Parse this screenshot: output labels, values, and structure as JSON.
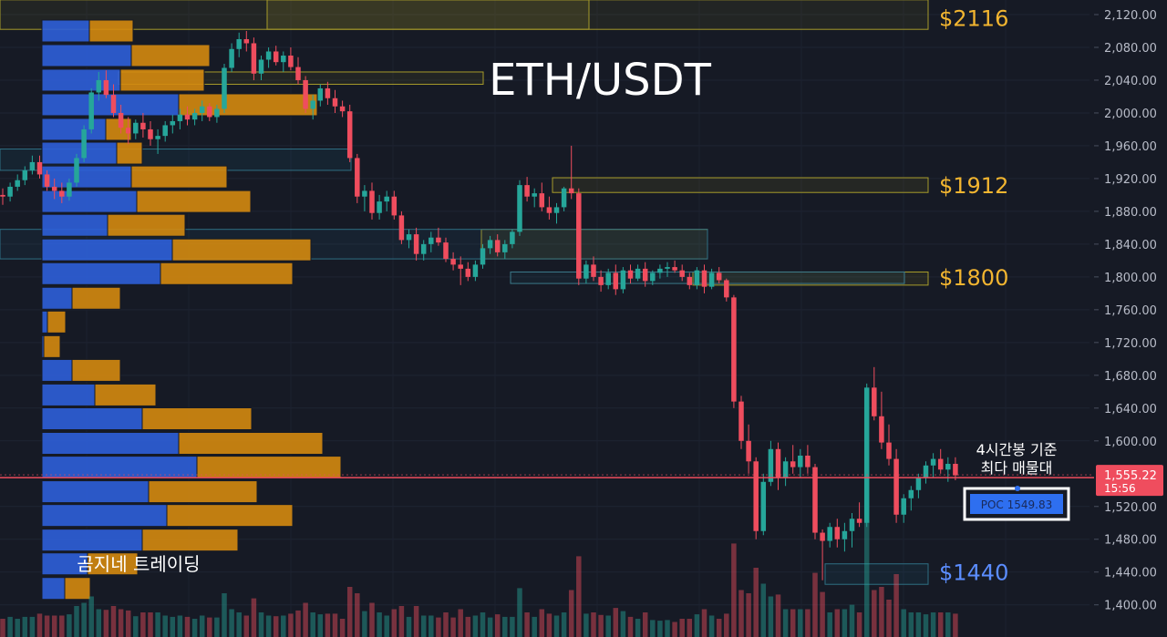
{
  "chart_data": {
    "type": "candlestick",
    "title": "ETH/USDT",
    "watermark": "곰지네 트레이딩",
    "y_axis": {
      "ylim": [
        1380,
        2140
      ],
      "ticks": [
        "2,120.00",
        "2,080.00",
        "2,040.00",
        "2,000.00",
        "1,960.00",
        "1,920.00",
        "1,880.00",
        "1,840.00",
        "1,800.00",
        "1,760.00",
        "1,720.00",
        "1,680.00",
        "1,640.00",
        "1,600.00",
        "1,520.00",
        "1,480.00",
        "1,440.00",
        "1,400.00"
      ],
      "tick_values": [
        2120,
        2080,
        2040,
        2000,
        1960,
        1920,
        1880,
        1840,
        1800,
        1760,
        1720,
        1680,
        1640,
        1600,
        1520,
        1480,
        1440,
        1400
      ]
    },
    "current_price": {
      "value": 1555.22,
      "label": "1,555.22",
      "countdown": "15:56"
    },
    "levels": [
      {
        "label": "$2116",
        "price": 2116,
        "color": "#f2b530"
      },
      {
        "label": "$1912",
        "price": 1912,
        "color": "#f2b530"
      },
      {
        "label": "$1800",
        "price": 1800,
        "color": "#f2b530"
      },
      {
        "label": "$1440",
        "price": 1440,
        "color": "#5b8dff"
      }
    ],
    "poc": {
      "label": "POC  1549.83",
      "value": 1549.83,
      "annotation_line1": "4시간봉 기준",
      "annotation_line2": "최다 매물대"
    },
    "volume_profile": [
      {
        "price": 2100,
        "buy": 52,
        "sell": 48
      },
      {
        "price": 2070,
        "buy": 98,
        "sell": 86
      },
      {
        "price": 2040,
        "buy": 86,
        "sell": 92
      },
      {
        "price": 2010,
        "buy": 150,
        "sell": 152
      },
      {
        "price": 1980,
        "buy": 70,
        "sell": 28
      },
      {
        "price": 1951,
        "buy": 82,
        "sell": 28
      },
      {
        "price": 1922,
        "buy": 98,
        "sell": 105
      },
      {
        "price": 1892,
        "buy": 104,
        "sell": 125
      },
      {
        "price": 1863,
        "buy": 72,
        "sell": 85
      },
      {
        "price": 1833,
        "buy": 143,
        "sell": 152
      },
      {
        "price": 1804,
        "buy": 130,
        "sell": 145
      },
      {
        "price": 1774,
        "buy": 33,
        "sell": 53
      },
      {
        "price": 1745,
        "buy": 6,
        "sell": 20
      },
      {
        "price": 1715,
        "buy": 2,
        "sell": 18
      },
      {
        "price": 1686,
        "buy": 33,
        "sell": 53
      },
      {
        "price": 1656,
        "buy": 58,
        "sell": 67
      },
      {
        "price": 1627,
        "buy": 110,
        "sell": 120
      },
      {
        "price": 1597,
        "buy": 150,
        "sell": 158
      },
      {
        "price": 1568,
        "buy": 170,
        "sell": 158
      },
      {
        "price": 1538,
        "buy": 117,
        "sell": 119
      },
      {
        "price": 1509,
        "buy": 137,
        "sell": 138
      },
      {
        "price": 1479,
        "buy": 110,
        "sell": 105
      },
      {
        "price": 1450,
        "buy": 50,
        "sell": 55
      },
      {
        "price": 1420,
        "buy": 25,
        "sell": 28
      }
    ],
    "ohlc": [
      [
        1900,
        1908,
        1888,
        1898
      ],
      [
        1898,
        1915,
        1892,
        1910
      ],
      [
        1910,
        1925,
        1905,
        1918
      ],
      [
        1918,
        1935,
        1912,
        1930
      ],
      [
        1930,
        1948,
        1925,
        1940
      ],
      [
        1940,
        1948,
        1920,
        1925
      ],
      [
        1925,
        1930,
        1905,
        1910
      ],
      [
        1910,
        1920,
        1895,
        1905
      ],
      [
        1905,
        1915,
        1890,
        1898
      ],
      [
        1898,
        1920,
        1893,
        1915
      ],
      [
        1915,
        1950,
        1910,
        1945
      ],
      [
        1945,
        1985,
        1940,
        1980
      ],
      [
        1980,
        2030,
        1975,
        2025
      ],
      [
        2025,
        2050,
        2015,
        2040
      ],
      [
        2040,
        2052,
        2018,
        2022
      ],
      [
        2022,
        2035,
        1995,
        2000
      ],
      [
        2000,
        2010,
        1975,
        1982
      ],
      [
        1982,
        1995,
        1962,
        1975
      ],
      [
        1975,
        1992,
        1968,
        1988
      ],
      [
        1988,
        2000,
        1970,
        1980
      ],
      [
        1980,
        1990,
        1960,
        1968
      ],
      [
        1968,
        1980,
        1950,
        1972
      ],
      [
        1972,
        1990,
        1965,
        1985
      ],
      [
        1985,
        1998,
        1975,
        1990
      ],
      [
        1990,
        2005,
        1980,
        1998
      ],
      [
        1998,
        2008,
        1985,
        1992
      ],
      [
        1992,
        2005,
        1985,
        2000
      ],
      [
        2000,
        2015,
        1990,
        2008
      ],
      [
        2008,
        2012,
        1990,
        1995
      ],
      [
        1995,
        2010,
        1988,
        2005
      ],
      [
        2005,
        2060,
        2000,
        2055
      ],
      [
        2055,
        2085,
        2050,
        2078
      ],
      [
        2078,
        2098,
        2068,
        2090
      ],
      [
        2090,
        2100,
        2075,
        2085
      ],
      [
        2085,
        2092,
        2040,
        2048
      ],
      [
        2048,
        2070,
        2040,
        2065
      ],
      [
        2065,
        2080,
        2055,
        2075
      ],
      [
        2075,
        2082,
        2058,
        2062
      ],
      [
        2062,
        2075,
        2050,
        2070
      ],
      [
        2070,
        2080,
        2052,
        2056
      ],
      [
        2056,
        2068,
        2035,
        2040
      ],
      [
        2040,
        2045,
        2000,
        2005
      ],
      [
        2005,
        2022,
        1992,
        2015
      ],
      [
        2015,
        2035,
        2008,
        2030
      ],
      [
        2030,
        2038,
        2010,
        2018
      ],
      [
        2018,
        2028,
        2000,
        2008
      ],
      [
        2008,
        2015,
        1995,
        2002
      ],
      [
        2002,
        2010,
        1940,
        1945
      ],
      [
        1945,
        1950,
        1890,
        1898
      ],
      [
        1898,
        1912,
        1880,
        1905
      ],
      [
        1905,
        1915,
        1870,
        1878
      ],
      [
        1878,
        1900,
        1870,
        1892
      ],
      [
        1892,
        1905,
        1880,
        1898
      ],
      [
        1898,
        1905,
        1870,
        1875
      ],
      [
        1875,
        1880,
        1840,
        1845
      ],
      [
        1845,
        1858,
        1835,
        1852
      ],
      [
        1852,
        1860,
        1820,
        1828
      ],
      [
        1828,
        1845,
        1820,
        1840
      ],
      [
        1840,
        1855,
        1830,
        1848
      ],
      [
        1848,
        1860,
        1838,
        1842
      ],
      [
        1842,
        1848,
        1818,
        1822
      ],
      [
        1822,
        1830,
        1808,
        1815
      ],
      [
        1815,
        1825,
        1790,
        1810
      ],
      [
        1810,
        1818,
        1795,
        1800
      ],
      [
        1800,
        1820,
        1795,
        1815
      ],
      [
        1815,
        1840,
        1810,
        1835
      ],
      [
        1835,
        1850,
        1828,
        1845
      ],
      [
        1845,
        1852,
        1825,
        1830
      ],
      [
        1830,
        1845,
        1822,
        1840
      ],
      [
        1840,
        1858,
        1835,
        1855
      ],
      [
        1855,
        1918,
        1850,
        1912
      ],
      [
        1912,
        1922,
        1892,
        1898
      ],
      [
        1898,
        1908,
        1885,
        1902
      ],
      [
        1902,
        1915,
        1880,
        1885
      ],
      [
        1885,
        1898,
        1870,
        1878
      ],
      [
        1878,
        1890,
        1865,
        1885
      ],
      [
        1885,
        1910,
        1880,
        1908
      ],
      [
        1908,
        1960,
        1895,
        1902
      ],
      [
        1902,
        1908,
        1790,
        1798
      ],
      [
        1798,
        1820,
        1792,
        1815
      ],
      [
        1815,
        1825,
        1795,
        1800
      ],
      [
        1800,
        1808,
        1782,
        1790
      ],
      [
        1790,
        1810,
        1785,
        1805
      ],
      [
        1805,
        1815,
        1778,
        1785
      ],
      [
        1785,
        1812,
        1780,
        1808
      ],
      [
        1808,
        1815,
        1792,
        1798
      ],
      [
        1798,
        1815,
        1795,
        1810
      ],
      [
        1810,
        1818,
        1788,
        1795
      ],
      [
        1795,
        1808,
        1790,
        1805
      ],
      [
        1805,
        1815,
        1798,
        1810
      ],
      [
        1810,
        1818,
        1800,
        1812
      ],
      [
        1812,
        1820,
        1805,
        1808
      ],
      [
        1808,
        1815,
        1795,
        1800
      ],
      [
        1800,
        1805,
        1785,
        1790
      ],
      [
        1790,
        1812,
        1785,
        1808
      ],
      [
        1808,
        1815,
        1780,
        1788
      ],
      [
        1788,
        1810,
        1785,
        1805
      ],
      [
        1805,
        1812,
        1792,
        1796
      ],
      [
        1796,
        1798,
        1770,
        1775
      ],
      [
        1775,
        1778,
        1640,
        1648
      ],
      [
        1648,
        1655,
        1590,
        1600
      ],
      [
        1600,
        1620,
        1560,
        1575
      ],
      [
        1575,
        1580,
        1480,
        1490
      ],
      [
        1490,
        1560,
        1485,
        1550
      ],
      [
        1550,
        1600,
        1545,
        1590
      ],
      [
        1590,
        1598,
        1540,
        1555
      ],
      [
        1555,
        1580,
        1545,
        1575
      ],
      [
        1575,
        1595,
        1560,
        1568
      ],
      [
        1568,
        1590,
        1555,
        1582
      ],
      [
        1582,
        1595,
        1560,
        1568
      ],
      [
        1568,
        1572,
        1480,
        1488
      ],
      [
        1488,
        1492,
        1430,
        1478
      ],
      [
        1478,
        1500,
        1470,
        1495
      ],
      [
        1495,
        1505,
        1470,
        1480
      ],
      [
        1480,
        1500,
        1465,
        1490
      ],
      [
        1490,
        1512,
        1470,
        1505
      ],
      [
        1505,
        1525,
        1495,
        1500
      ],
      [
        1500,
        1670,
        1495,
        1665
      ],
      [
        1665,
        1690,
        1625,
        1630
      ],
      [
        1630,
        1660,
        1590,
        1598
      ],
      [
        1598,
        1620,
        1570,
        1578
      ],
      [
        1578,
        1590,
        1500,
        1510
      ],
      [
        1510,
        1535,
        1500,
        1530
      ],
      [
        1530,
        1545,
        1515,
        1540
      ],
      [
        1540,
        1560,
        1530,
        1555
      ],
      [
        1555,
        1575,
        1548,
        1570
      ],
      [
        1570,
        1585,
        1555,
        1578
      ],
      [
        1578,
        1590,
        1560,
        1565
      ],
      [
        1565,
        1580,
        1550,
        1572
      ],
      [
        1572,
        1580,
        1552,
        1558
      ]
    ]
  }
}
